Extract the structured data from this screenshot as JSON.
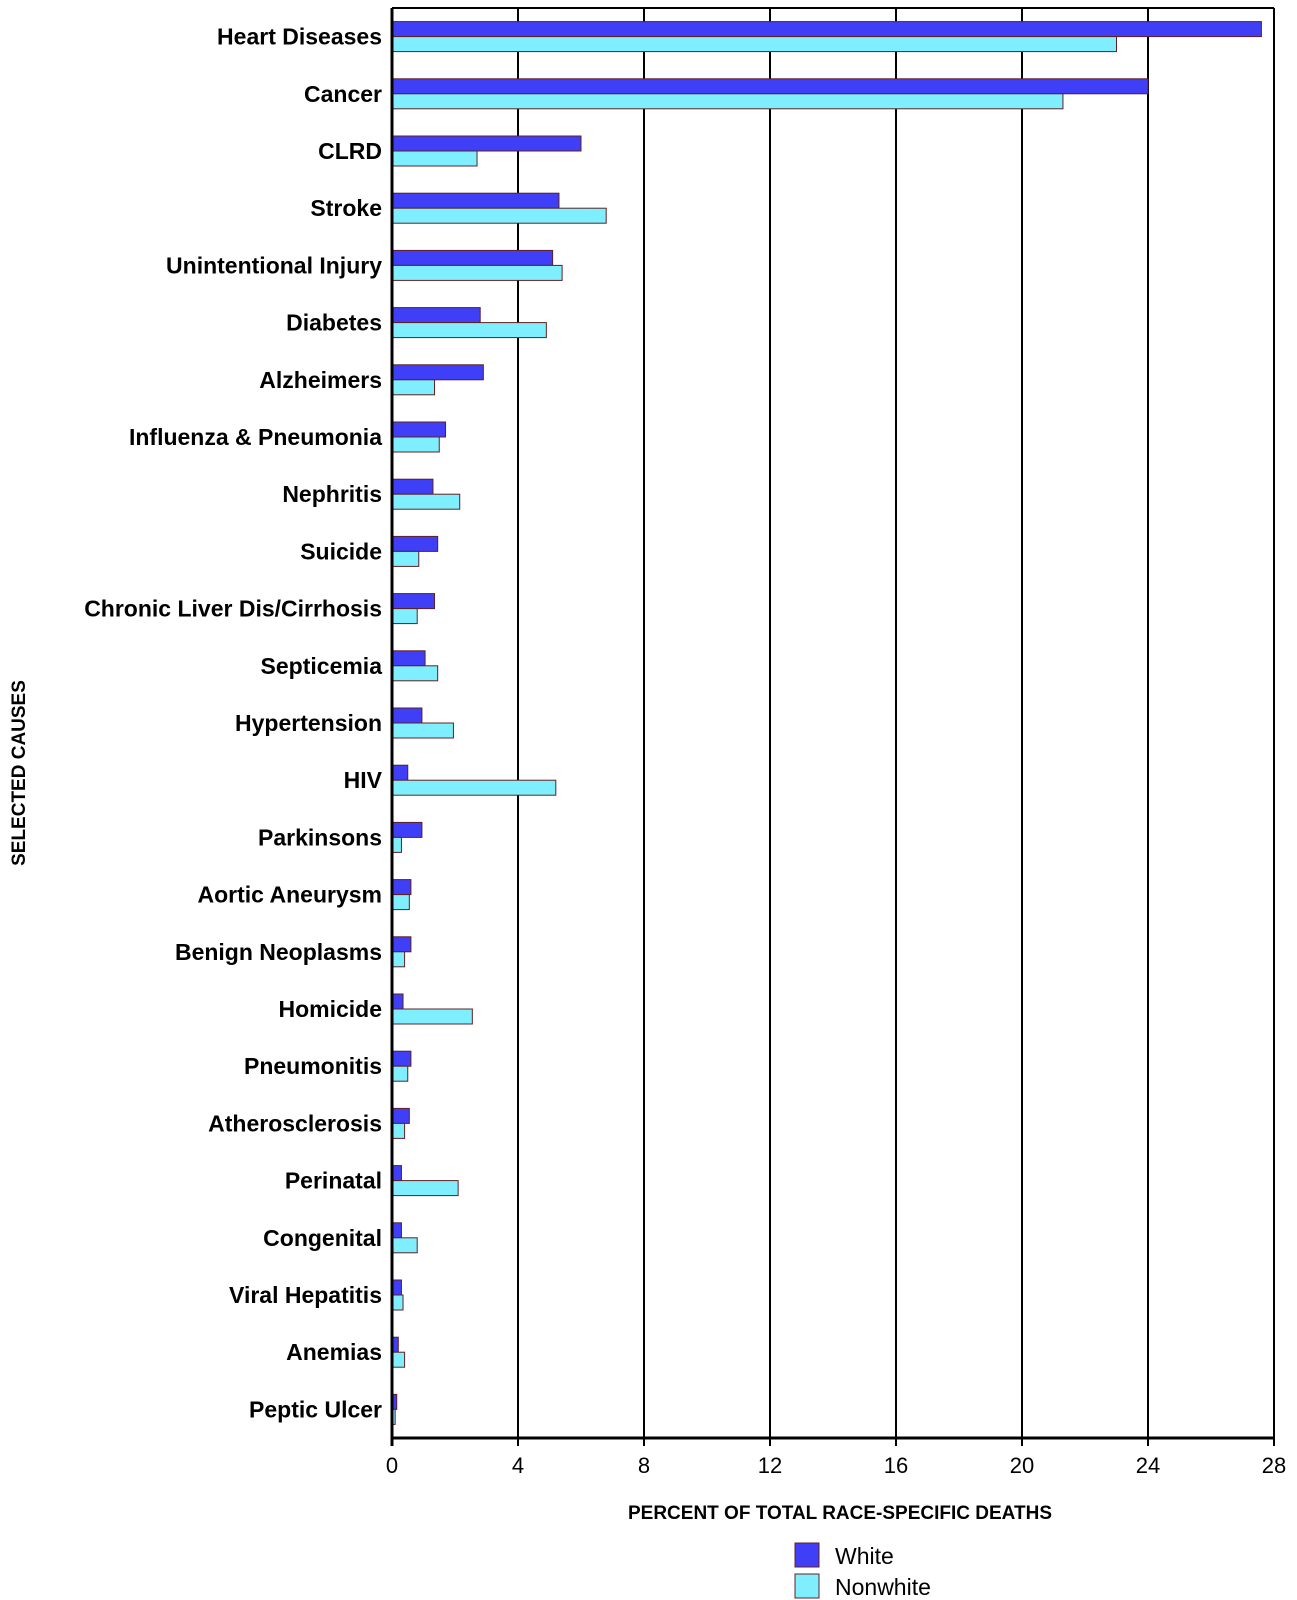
{
  "chart_data": {
    "type": "bar",
    "orientation": "horizontal",
    "categories": [
      "Heart Diseases",
      "Cancer",
      "CLRD",
      "Stroke",
      "Unintentional Injury",
      "Diabetes",
      "Alzheimers",
      "Influenza & Pneumonia",
      "Nephritis",
      "Suicide",
      "Chronic Liver Dis/Cirrhosis",
      "Septicemia",
      "Hypertension",
      "HIV",
      "Parkinsons",
      "Aortic Aneurysm",
      "Benign Neoplasms",
      "Homicide",
      "Pneumonitis",
      "Atherosclerosis",
      "Perinatal",
      "Congenital",
      "Viral Hepatitis",
      "Anemias",
      "Peptic Ulcer"
    ],
    "series": [
      {
        "name": "White",
        "color": "#3f3ff7",
        "values": [
          27.6,
          24.0,
          6.0,
          5.3,
          5.1,
          2.8,
          2.9,
          1.7,
          1.3,
          1.45,
          1.35,
          1.05,
          0.95,
          0.5,
          0.95,
          0.6,
          0.6,
          0.35,
          0.6,
          0.55,
          0.3,
          0.3,
          0.3,
          0.2,
          0.15
        ]
      },
      {
        "name": "Nonwhite",
        "color": "#7fefff",
        "values": [
          23.0,
          21.3,
          2.7,
          6.8,
          5.4,
          4.9,
          1.35,
          1.5,
          2.15,
          0.85,
          0.8,
          1.45,
          1.95,
          5.2,
          0.3,
          0.55,
          0.4,
          2.55,
          0.5,
          0.4,
          2.1,
          0.8,
          0.35,
          0.4,
          0.1
        ]
      }
    ],
    "xlim": [
      0,
      28
    ],
    "xticks": [
      "0",
      "4",
      "8",
      "12",
      "16",
      "20",
      "24",
      "28"
    ],
    "xlabel": "PERCENT OF TOTAL RACE-SPECIFIC DEATHS",
    "ylabel": "SELECTED CAUSES",
    "grid": "vertical",
    "legend_position": "bottom-center",
    "legend": [
      "White",
      "Nonwhite"
    ]
  }
}
